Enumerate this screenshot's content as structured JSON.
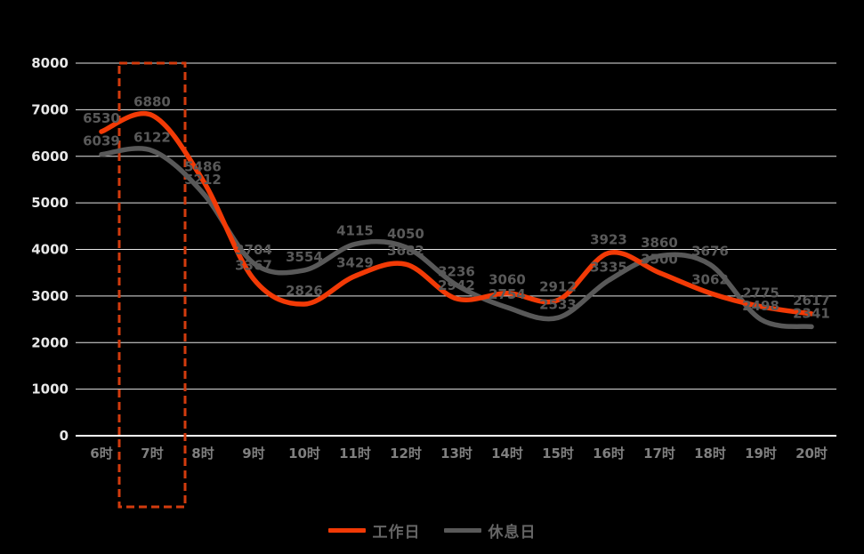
{
  "chart_data": {
    "type": "line",
    "title": "",
    "categories": [
      "6时",
      "7时",
      "8时",
      "9时",
      "10时",
      "11时",
      "12时",
      "13时",
      "14时",
      "15时",
      "16时",
      "17时",
      "18时",
      "19时",
      "20时"
    ],
    "series": [
      {
        "name": "工作日",
        "color": "#F23A06",
        "values": [
          6530,
          6880,
          5486,
          3367,
          2826,
          3429,
          3682,
          2942,
          3060,
          2912,
          3923,
          3500,
          3062,
          2775,
          2617
        ]
      },
      {
        "name": "休息日",
        "color": "#595959",
        "values": [
          6039,
          6122,
          5212,
          3704,
          3554,
          4115,
          4050,
          3236,
          2754,
          2533,
          3335,
          3860,
          3676,
          2498,
          2341
        ]
      }
    ],
    "ylim": [
      0,
      8000
    ],
    "ytick_step": 1000,
    "y_ticks": [
      "0",
      "1000",
      "2000",
      "3000",
      "4000",
      "5000",
      "6000",
      "7000",
      "8000"
    ],
    "grid": "horizontal-white-gridlines",
    "legend_position": "bottom",
    "annotation": {
      "type": "dashed-rectangle-highlight",
      "category": "7时",
      "color": "#D23B0E"
    }
  },
  "legend": {
    "items": [
      {
        "label": "工作日",
        "color": "#F23A06"
      },
      {
        "label": "休息日",
        "color": "#595959"
      }
    ]
  },
  "style": {
    "background": "#000000",
    "gridline_color": "#FFFFFF",
    "data_label_color": "#595959",
    "y_tick_color": "#E8E8E8",
    "x_tick_color": "#7F7F7F"
  }
}
